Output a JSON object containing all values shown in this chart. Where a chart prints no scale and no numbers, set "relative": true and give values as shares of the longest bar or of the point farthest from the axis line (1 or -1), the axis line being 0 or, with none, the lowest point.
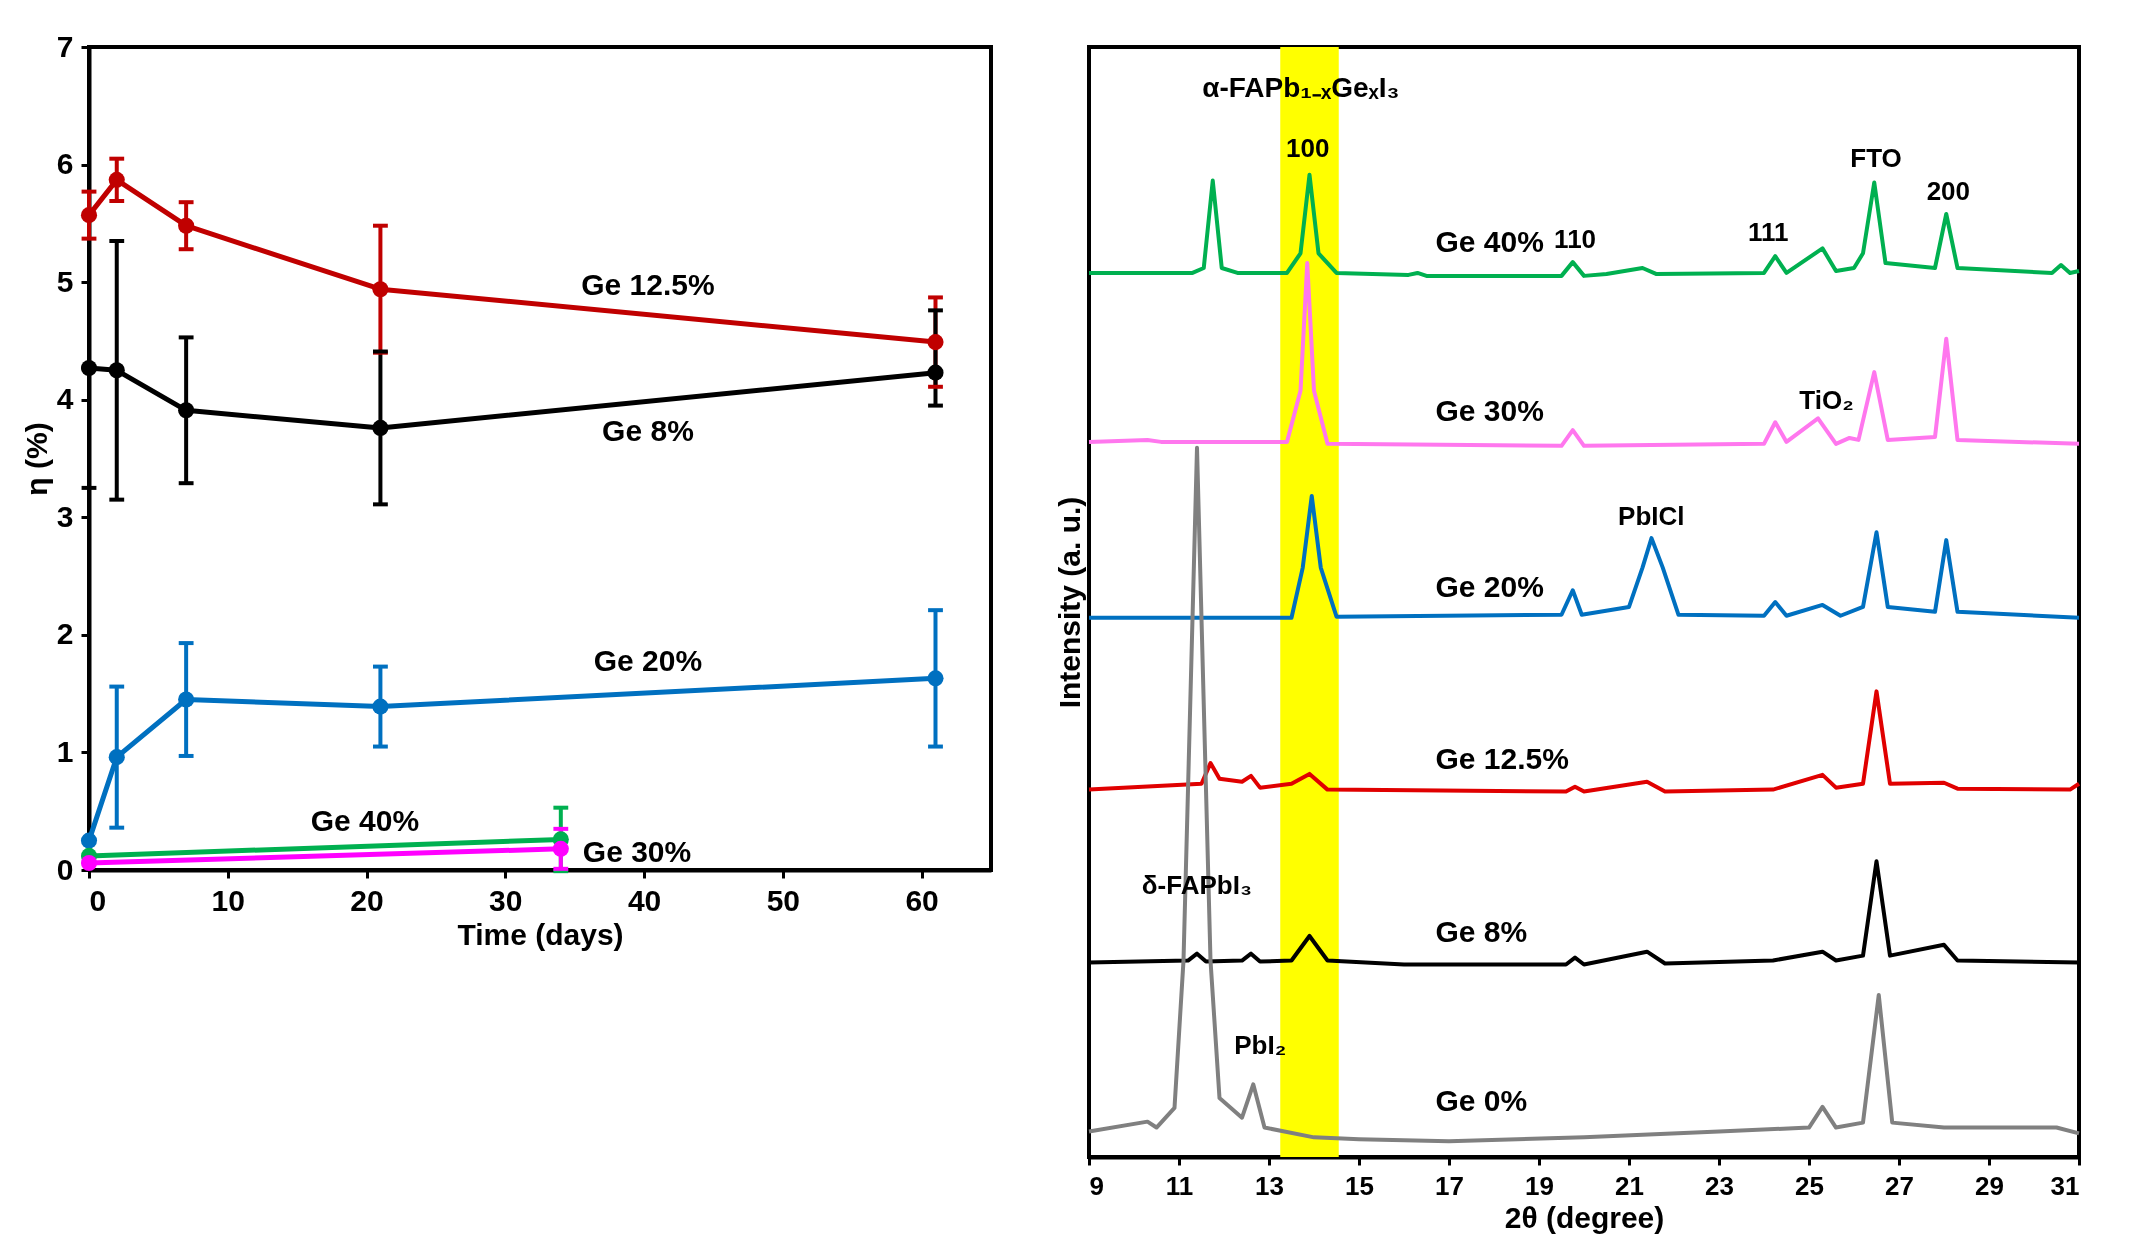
{
  "chart_data": [
    {
      "type": "line",
      "xlabel": "Time (days)",
      "ylabel": "η (%)",
      "xlim": [
        0,
        65
      ],
      "xticks": [
        0,
        10,
        20,
        30,
        40,
        50,
        60
      ],
      "ylim": [
        0,
        7
      ],
      "yticks": [
        0,
        1,
        2,
        3,
        4,
        5,
        6,
        7
      ],
      "grid": false,
      "legend": false,
      "marker": "circle",
      "line_style": "solid",
      "x": [
        0,
        2,
        7,
        21,
        61
      ],
      "series": [
        {
          "name": "Ge 12.5%",
          "color": "#c00000",
          "values": [
            5.57,
            5.87,
            5.48,
            4.94,
            4.49
          ],
          "errors": [
            0.2,
            0.18,
            0.2,
            0.54,
            0.38
          ]
        },
        {
          "name": "Ge 8%",
          "color": "#000000",
          "values": [
            4.27,
            4.25,
            3.91,
            3.76,
            4.23
          ],
          "errors": [
            [
              3.25,
              4.27
            ],
            1.1,
            0.62,
            0.65,
            [
              3.95,
              4.76
            ]
          ]
        },
        {
          "name": "Ge 20%",
          "color": "#0070c0",
          "values": [
            0.25,
            0.96,
            1.45,
            1.39,
            1.63
          ],
          "errors": [
            null,
            0.6,
            0.48,
            0.34,
            0.58
          ]
        },
        {
          "name": "Ge 40%",
          "color": "#00b050",
          "x": [
            0,
            34
          ],
          "values": [
            0.12,
            0.26
          ],
          "errors": [
            null,
            0.27
          ]
        },
        {
          "name": "Ge 30%",
          "color": "#ff00ff",
          "x": [
            0,
            34
          ],
          "values": [
            0.06,
            0.18
          ],
          "errors": [
            null,
            0.17
          ]
        }
      ]
    },
    {
      "type": "line",
      "relative": true,
      "xlabel": "2θ (degree)",
      "ylabel": "Intensity (a. u.)",
      "xlim": [
        9,
        31
      ],
      "xticks": [
        9,
        11,
        13,
        15,
        17,
        19,
        21,
        23,
        25,
        27,
        29,
        31
      ],
      "grid": false,
      "legend": false,
      "line_style": "solid",
      "bands": [
        {
          "axis": "x",
          "from": 13.25,
          "to": 14.55,
          "color": "#ffff00"
        }
      ],
      "annotations": [
        "α-FAPb₁₋ₓGeₓI₃",
        "100",
        "FTO",
        "200",
        "110",
        "111",
        "TiO₂",
        "PbICl",
        "δ-FAPbI₃",
        "PbI₂"
      ],
      "series": [
        {
          "name": "Ge 40%",
          "color": "#00b050",
          "x": [
            9,
            11.3,
            11.55,
            11.75,
            11.95,
            12.3,
            13.4,
            13.7,
            13.9,
            14.1,
            14.5,
            16.1,
            16.3,
            16.5,
            19.5,
            19.75,
            20,
            20.5,
            21.3,
            21.6,
            24,
            24.25,
            24.5,
            25.3,
            25.6,
            26,
            26.2,
            26.45,
            26.7,
            27.8,
            28.05,
            28.3,
            30.4,
            30.6,
            30.8,
            31
          ],
          "values": [
            0.9,
            0.9,
            0.905,
            0.994,
            0.905,
            0.9,
            0.9,
            0.92,
            1,
            0.92,
            0.9,
            0.898,
            0.9,
            0.897,
            0.897,
            0.911,
            0.897,
            0.899,
            0.905,
            0.899,
            0.9,
            0.917,
            0.9,
            0.925,
            0.902,
            0.905,
            0.92,
            0.992,
            0.91,
            0.905,
            0.96,
            0.905,
            0.9,
            0.908,
            0.9,
            0.902
          ]
        },
        {
          "name": "Ge 30%",
          "color": "#ff77ee",
          "x": [
            9,
            10.3,
            10.6,
            13.4,
            13.7,
            13.85,
            14,
            14.3,
            19.5,
            19.75,
            20,
            24,
            24.25,
            24.5,
            25.2,
            25.6,
            25.9,
            26.1,
            26.45,
            26.75,
            27.8,
            28.05,
            28.3,
            31
          ],
          "values": [
            0.728,
            0.73,
            0.728,
            0.728,
            0.78,
            0.91,
            0.78,
            0.726,
            0.724,
            0.74,
            0.724,
            0.726,
            0.748,
            0.728,
            0.752,
            0.726,
            0.732,
            0.73,
            0.799,
            0.73,
            0.733,
            0.833,
            0.73,
            0.726
          ]
        },
        {
          "name": "Ge 20%",
          "color": "#0070c0",
          "x": [
            9,
            13.5,
            13.75,
            13.95,
            14.15,
            14.5,
            19.5,
            19.75,
            19.95,
            21,
            21.3,
            21.5,
            21.75,
            22.1,
            24,
            24.25,
            24.5,
            25.3,
            25.7,
            26.2,
            26.5,
            26.75,
            27.8,
            28.05,
            28.3,
            31
          ],
          "values": [
            0.549,
            0.549,
            0.6,
            0.673,
            0.6,
            0.55,
            0.552,
            0.577,
            0.552,
            0.56,
            0.6,
            0.63,
            0.6,
            0.552,
            0.551,
            0.565,
            0.551,
            0.562,
            0.551,
            0.56,
            0.636,
            0.56,
            0.555,
            0.628,
            0.555,
            0.549
          ]
        },
        {
          "name": "Ge 12.5%",
          "color": "#e00000",
          "x": [
            9,
            11.5,
            11.7,
            11.9,
            12.4,
            12.6,
            12.8,
            13.5,
            13.9,
            14.3,
            19.6,
            19.8,
            20,
            21.4,
            21.8,
            24.2,
            25.3,
            25.6,
            26.2,
            26.5,
            26.8,
            28,
            28.3,
            30.8,
            31
          ],
          "values": [
            0.374,
            0.38,
            0.401,
            0.385,
            0.382,
            0.388,
            0.376,
            0.38,
            0.39,
            0.374,
            0.372,
            0.377,
            0.372,
            0.382,
            0.372,
            0.374,
            0.389,
            0.376,
            0.38,
            0.474,
            0.38,
            0.381,
            0.375,
            0.374,
            0.38
          ]
        },
        {
          "name": "Ge 8%",
          "color": "#000000",
          "x": [
            9,
            11.2,
            11.4,
            11.6,
            12.4,
            12.6,
            12.8,
            13.5,
            13.9,
            14.3,
            16,
            19.6,
            19.8,
            20,
            21.4,
            21.8,
            24.2,
            25.3,
            25.6,
            26.2,
            26.5,
            26.8,
            28,
            28.3,
            31
          ],
          "values": [
            0.198,
            0.2,
            0.207,
            0.199,
            0.2,
            0.207,
            0.199,
            0.2,
            0.225,
            0.2,
            0.196,
            0.196,
            0.203,
            0.196,
            0.209,
            0.197,
            0.2,
            0.209,
            0.2,
            0.205,
            0.301,
            0.205,
            0.216,
            0.2,
            0.198
          ]
        },
        {
          "name": "Ge 0%",
          "color": "#808080",
          "x": [
            9,
            10.3,
            10.5,
            10.9,
            11.1,
            11.4,
            11.7,
            11.9,
            12.4,
            12.65,
            12.9,
            14,
            15,
            17,
            20,
            23,
            25,
            25.3,
            25.6,
            26.2,
            26.55,
            26.85,
            28,
            30.5,
            31
          ],
          "values": [
            0.026,
            0.036,
            0.03,
            0.05,
            0.2,
            0.722,
            0.2,
            0.06,
            0.04,
            0.074,
            0.03,
            0.02,
            0.018,
            0.016,
            0.02,
            0.026,
            0.03,
            0.051,
            0.03,
            0.035,
            0.165,
            0.035,
            0.03,
            0.03,
            0.024
          ]
        }
      ]
    }
  ]
}
